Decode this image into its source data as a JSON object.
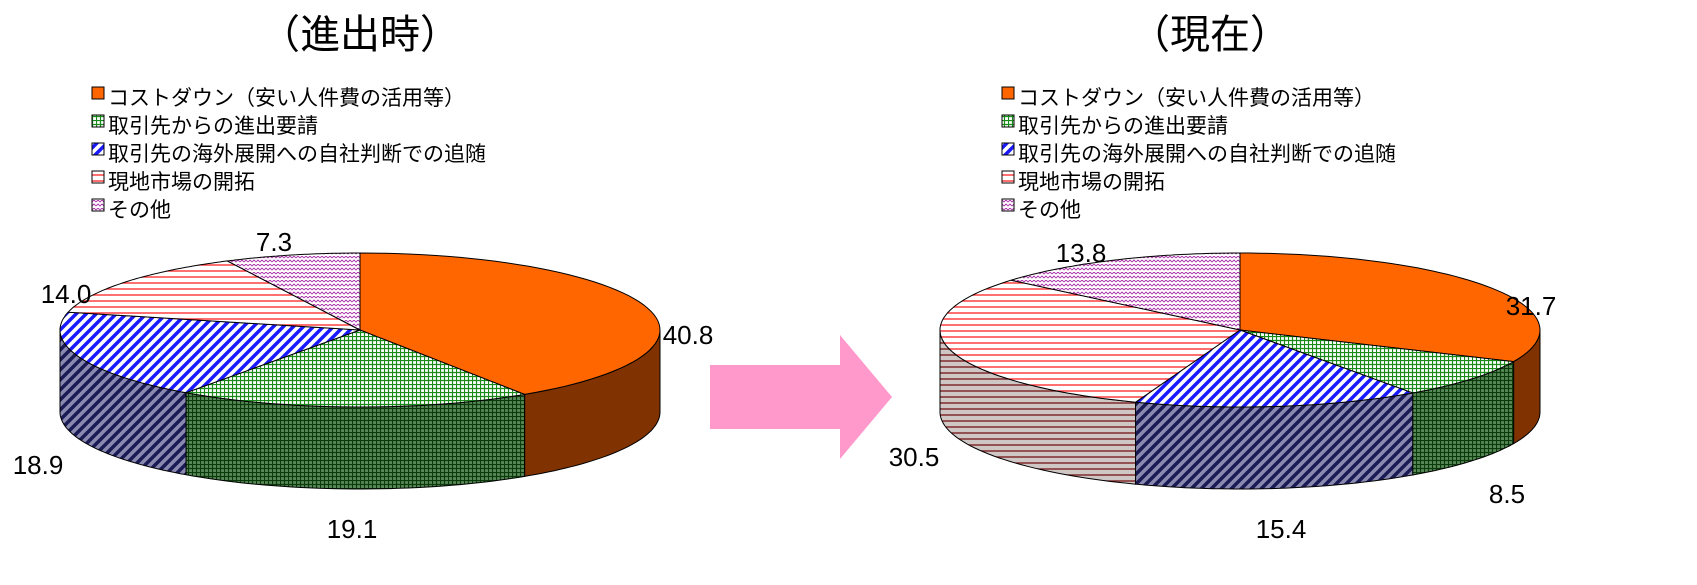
{
  "chart_data": [
    {
      "type": "pie",
      "title": "（進出時）",
      "legend_position": "top",
      "categories": [
        "コストダウン（安い人件費の活用等）",
        "取引先からの進出要請",
        "取引先の海外展開への自社判断での追随",
        "現地市場の開拓",
        "その他"
      ],
      "values": [
        40.8,
        19.1,
        18.9,
        14.0,
        7.3
      ],
      "value_labels": [
        "40.8",
        "19.1",
        "18.9",
        "14.0",
        "7.3"
      ]
    },
    {
      "type": "pie",
      "title": "（現在）",
      "legend_position": "top",
      "categories": [
        "コストダウン（安い人件費の活用等）",
        "取引先からの進出要請",
        "取引先の海外展開への自社判断での追随",
        "現地市場の開拓",
        "その他"
      ],
      "values": [
        31.7,
        8.5,
        15.4,
        30.5,
        13.8
      ],
      "value_labels": [
        "31.7",
        "8.5",
        "15.4",
        "30.5",
        "13.8"
      ]
    }
  ],
  "series_styles": [
    {
      "pattern": "solid",
      "top_color": "#ff6600",
      "side_color": "#803300"
    },
    {
      "pattern": "grid",
      "top_color": "#118811",
      "side_color": "#0b4d0b"
    },
    {
      "pattern": "diagonal",
      "top_color": "#1a1aff",
      "side_color": "#1a1a55"
    },
    {
      "pattern": "horizontal",
      "top_color": "#ff3333",
      "side_color": "#7a1f1f"
    },
    {
      "pattern": "zigzag",
      "top_color": "#aa33aa",
      "side_color": "#552255"
    }
  ],
  "arrow_color": "#ff99cc"
}
